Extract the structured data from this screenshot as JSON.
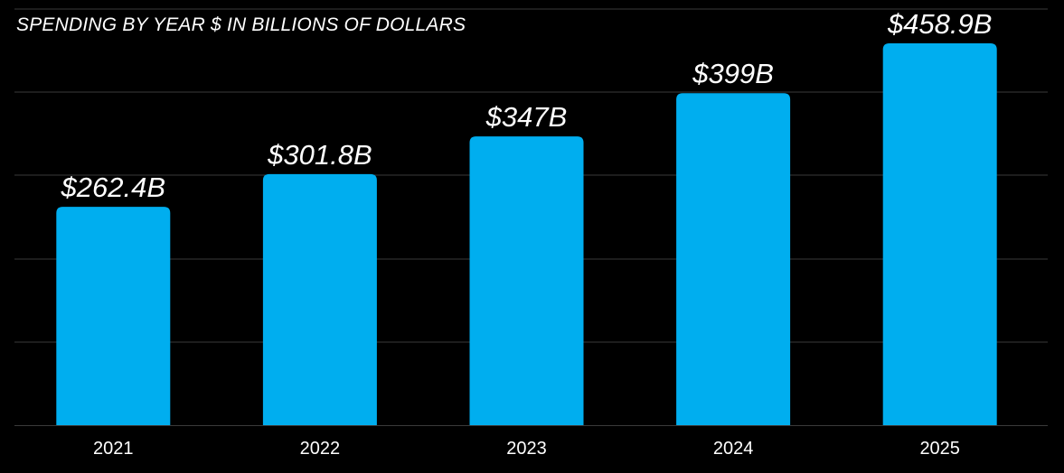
{
  "chart_data": {
    "type": "bar",
    "title": "SPENDING BY YEAR $ IN BILLIONS OF DOLLARS",
    "xlabel": "",
    "ylabel": "",
    "categories": [
      "2021",
      "2022",
      "2023",
      "2024",
      "2025"
    ],
    "values": [
      262.4,
      301.8,
      347,
      399,
      458.9
    ],
    "data_labels": [
      "$262.4B",
      "$301.8B",
      "$347B",
      "$399B",
      "$458.9B"
    ],
    "ylim": [
      0,
      500
    ],
    "grid": true,
    "bar_color": "#00AEEF",
    "background_color": "#000000",
    "grid_color": "#3a3a3a",
    "text_color": "#ffffff"
  }
}
